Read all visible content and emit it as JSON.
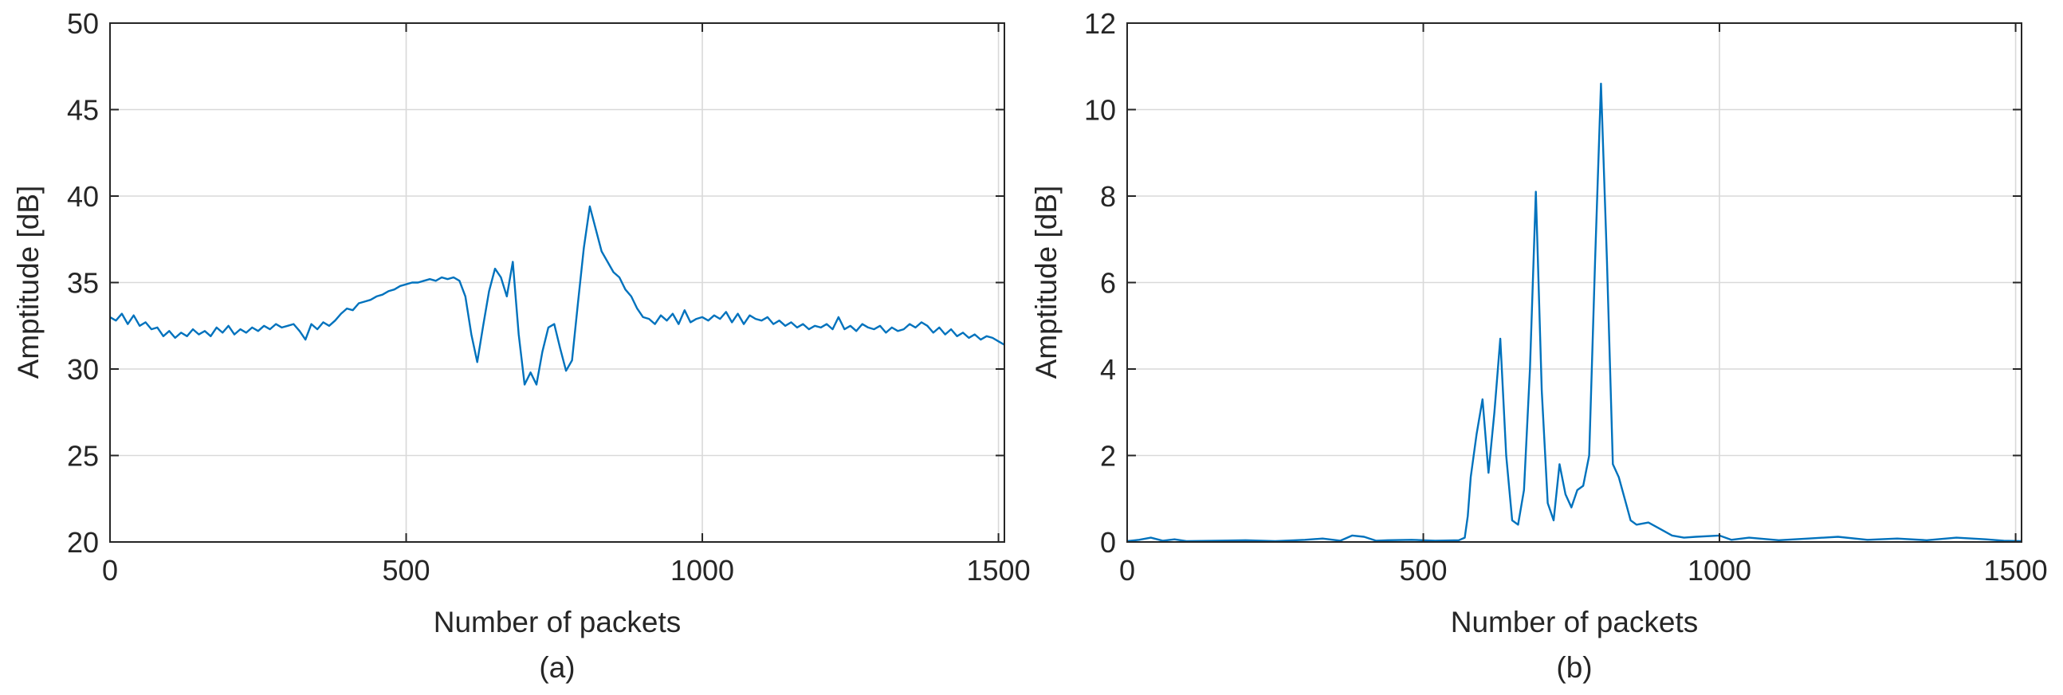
{
  "chart_data": [
    {
      "type": "line",
      "caption": "(a)",
      "xlabel": "Number of packets",
      "ylabel": "Amptitude [dB]",
      "xlim": [
        0,
        1510
      ],
      "ylim": [
        20,
        50
      ],
      "xticks": [
        0,
        500,
        1000,
        1500
      ],
      "yticks": [
        20,
        25,
        30,
        35,
        40,
        45,
        50
      ],
      "grid": true,
      "color": "#0072BD",
      "series": [
        {
          "x": [
            0,
            10,
            20,
            30,
            40,
            50,
            60,
            70,
            80,
            90,
            100,
            110,
            120,
            130,
            140,
            150,
            160,
            170,
            180,
            190,
            200,
            210,
            220,
            230,
            240,
            250,
            260,
            270,
            280,
            290,
            300,
            310,
            320,
            330,
            340,
            350,
            360,
            370,
            380,
            390,
            400,
            410,
            420,
            430,
            440,
            450,
            460,
            470,
            480,
            490,
            500,
            510,
            520,
            530,
            540,
            550,
            560,
            570,
            580,
            590,
            600,
            610,
            620,
            630,
            640,
            650,
            660,
            670,
            680,
            690,
            700,
            710,
            720,
            730,
            740,
            750,
            760,
            770,
            780,
            790,
            800,
            810,
            820,
            830,
            840,
            850,
            860,
            870,
            880,
            890,
            900,
            910,
            920,
            930,
            940,
            950,
            960,
            970,
            980,
            990,
            1000,
            1010,
            1020,
            1030,
            1040,
            1050,
            1060,
            1070,
            1080,
            1090,
            1100,
            1110,
            1120,
            1130,
            1140,
            1150,
            1160,
            1170,
            1180,
            1190,
            1200,
            1210,
            1220,
            1230,
            1240,
            1250,
            1260,
            1270,
            1280,
            1290,
            1300,
            1310,
            1320,
            1330,
            1340,
            1350,
            1360,
            1370,
            1380,
            1390,
            1400,
            1410,
            1420,
            1430,
            1440,
            1450,
            1460,
            1470,
            1480,
            1490,
            1500,
            1510
          ],
          "y": [
            33.0,
            32.8,
            33.2,
            32.6,
            33.1,
            32.5,
            32.7,
            32.3,
            32.4,
            31.9,
            32.2,
            31.8,
            32.1,
            31.9,
            32.3,
            32.0,
            32.2,
            31.9,
            32.4,
            32.1,
            32.5,
            32.0,
            32.3,
            32.1,
            32.4,
            32.2,
            32.5,
            32.3,
            32.6,
            32.4,
            32.5,
            32.6,
            32.2,
            31.7,
            32.6,
            32.3,
            32.7,
            32.5,
            32.8,
            33.2,
            33.5,
            33.4,
            33.8,
            33.9,
            34.0,
            34.2,
            34.3,
            34.5,
            34.6,
            34.8,
            34.9,
            35.0,
            35.0,
            35.1,
            35.2,
            35.1,
            35.3,
            35.2,
            35.3,
            35.1,
            34.2,
            32.0,
            30.4,
            32.5,
            34.5,
            35.8,
            35.3,
            34.2,
            36.2,
            32.0,
            29.1,
            29.8,
            29.1,
            31.0,
            32.4,
            32.6,
            31.2,
            29.9,
            30.5,
            33.8,
            37.0,
            39.4,
            38.1,
            36.8,
            36.2,
            35.6,
            35.3,
            34.6,
            34.2,
            33.5,
            33.0,
            32.9,
            32.6,
            33.1,
            32.8,
            33.2,
            32.6,
            33.4,
            32.7,
            32.9,
            33.0,
            32.8,
            33.1,
            32.9,
            33.3,
            32.7,
            33.2,
            32.6,
            33.1,
            32.9,
            32.8,
            33.0,
            32.6,
            32.8,
            32.5,
            32.7,
            32.4,
            32.6,
            32.3,
            32.5,
            32.4,
            32.6,
            32.3,
            33.0,
            32.3,
            32.5,
            32.2,
            32.6,
            32.4,
            32.3,
            32.5,
            32.1,
            32.4,
            32.2,
            32.3,
            32.6,
            32.4,
            32.7,
            32.5,
            32.1,
            32.4,
            32.0,
            32.3,
            31.9,
            32.1,
            31.8,
            32.0,
            31.7,
            31.9,
            31.8,
            31.6,
            31.4
          ]
        }
      ]
    },
    {
      "type": "line",
      "caption": "(b)",
      "xlabel": "Number of packets",
      "ylabel": "Amptitude [dB]",
      "xlim": [
        0,
        1510
      ],
      "ylim": [
        0,
        12
      ],
      "xticks": [
        0,
        500,
        1000,
        1500
      ],
      "yticks": [
        0,
        2,
        4,
        6,
        8,
        10,
        12
      ],
      "grid": true,
      "color": "#0072BD",
      "series": [
        {
          "x": [
            0,
            20,
            40,
            60,
            80,
            100,
            150,
            200,
            250,
            300,
            330,
            360,
            380,
            400,
            420,
            440,
            480,
            520,
            560,
            570,
            575,
            580,
            590,
            600,
            610,
            620,
            630,
            640,
            650,
            660,
            670,
            680,
            690,
            700,
            710,
            720,
            730,
            740,
            750,
            760,
            770,
            780,
            790,
            800,
            810,
            820,
            830,
            840,
            850,
            860,
            880,
            900,
            920,
            940,
            960,
            1000,
            1020,
            1050,
            1100,
            1150,
            1200,
            1250,
            1300,
            1350,
            1400,
            1450,
            1480,
            1510
          ],
          "y": [
            0.02,
            0.05,
            0.1,
            0.03,
            0.06,
            0.02,
            0.03,
            0.04,
            0.02,
            0.05,
            0.08,
            0.03,
            0.15,
            0.12,
            0.03,
            0.04,
            0.05,
            0.03,
            0.04,
            0.1,
            0.6,
            1.5,
            2.5,
            3.3,
            1.6,
            3.0,
            4.7,
            2.0,
            0.5,
            0.4,
            1.2,
            4.0,
            8.1,
            3.5,
            0.9,
            0.5,
            1.8,
            1.1,
            0.8,
            1.2,
            1.3,
            2.0,
            6.5,
            10.6,
            6.5,
            1.8,
            1.5,
            1.0,
            0.5,
            0.4,
            0.45,
            0.3,
            0.15,
            0.1,
            0.12,
            0.15,
            0.05,
            0.1,
            0.04,
            0.08,
            0.12,
            0.05,
            0.08,
            0.04,
            0.1,
            0.06,
            0.03,
            0.02
          ]
        }
      ]
    }
  ]
}
